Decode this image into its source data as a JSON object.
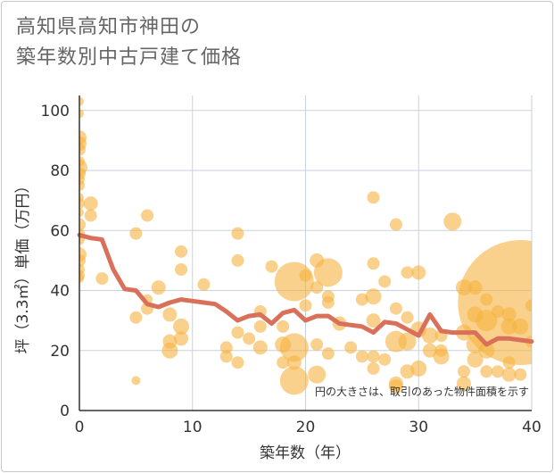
{
  "chart_data": {
    "type": "scatter",
    "title_lines": [
      "高知県高知市神田の",
      "築年数別中古戸建て価格"
    ],
    "xlabel": "築年数（年）",
    "ylabel": "坪（3.3㎡）単価（万円）",
    "xlim": [
      0,
      40
    ],
    "ylim": [
      0,
      105
    ],
    "x_ticks": [
      0,
      10,
      20,
      30,
      40
    ],
    "y_ticks": [
      0,
      20,
      40,
      60,
      80,
      100
    ],
    "grid": true,
    "note": "円の大きさは、取引のあった物件面積を示す",
    "colors": {
      "bubble": "#f5b340",
      "line": "#d9705a",
      "grid": "#c8d2dc",
      "axis": "#333333"
    },
    "series": [
      {
        "name": "平均坪単価",
        "type": "line",
        "x": [
          0,
          1,
          2,
          3,
          4,
          5,
          6,
          7,
          8,
          9,
          10,
          11,
          12,
          13,
          14,
          15,
          16,
          17,
          18,
          19,
          20,
          21,
          22,
          23,
          24,
          25,
          26,
          27,
          28,
          29,
          30,
          31,
          32,
          33,
          34,
          35,
          36,
          37,
          38,
          39,
          40
        ],
        "y": [
          58.5,
          57.5,
          57,
          47,
          40.5,
          40,
          35.5,
          34.5,
          36,
          37,
          36.5,
          36,
          35.5,
          33,
          30,
          31.5,
          32,
          29,
          32.5,
          33.5,
          30,
          31.5,
          31.5,
          29,
          28.5,
          28,
          26,
          29.5,
          29,
          27,
          25,
          32,
          26.5,
          26,
          26,
          26,
          22,
          24,
          24,
          23.5,
          23
        ]
      },
      {
        "name": "取引",
        "type": "bubble",
        "x": [
          0,
          0,
          0,
          0,
          0,
          0,
          0,
          0,
          0,
          0,
          0,
          0,
          0,
          0,
          0,
          0,
          0,
          0,
          0,
          0,
          0,
          1,
          1,
          2,
          5,
          5,
          5,
          6,
          6,
          6,
          7,
          8,
          8,
          8,
          9,
          9,
          9,
          9,
          11,
          13,
          13,
          14,
          14,
          14,
          14,
          15,
          16,
          16,
          16,
          17,
          18,
          18,
          18,
          19,
          19,
          19,
          19,
          20,
          20,
          21,
          21,
          21,
          21,
          22,
          22,
          22,
          22,
          23,
          24,
          25,
          25,
          26,
          26,
          26,
          26,
          26,
          26,
          27,
          27,
          28,
          28,
          28,
          28,
          28,
          29,
          29,
          29,
          29,
          30,
          30,
          30,
          31,
          31,
          32,
          32,
          32,
          33,
          34,
          34,
          34,
          34,
          35,
          35,
          35,
          35,
          36,
          36,
          36,
          36,
          37,
          37,
          38,
          38,
          38,
          38,
          39,
          39,
          39,
          40,
          40
        ],
        "y": [
          103,
          99,
          91,
          89,
          87,
          83,
          81,
          79,
          77,
          75,
          71,
          69,
          66,
          62,
          59,
          57,
          52,
          50,
          47,
          45,
          44,
          69,
          65,
          44,
          59,
          31,
          10,
          65,
          37,
          34,
          41,
          32,
          23,
          20,
          53,
          47,
          28,
          24,
          42,
          21,
          18,
          59,
          50,
          26,
          16,
          24,
          33,
          28,
          21,
          48,
          28,
          22,
          16,
          43,
          21,
          16,
          10,
          45,
          35,
          50,
          41,
          22,
          12,
          46,
          38,
          36,
          19,
          29,
          21,
          37,
          18,
          71,
          49,
          38,
          30,
          18,
          14,
          43,
          17,
          62,
          34,
          23,
          9,
          8,
          46,
          31,
          23,
          13,
          46,
          27,
          14,
          25,
          20,
          25,
          20,
          18,
          63,
          41,
          26,
          13,
          9,
          41,
          32,
          22,
          17,
          37,
          30,
          20,
          13,
          33,
          13,
          32,
          28,
          16,
          12,
          36,
          28,
          12,
          35,
          23
        ],
        "r": [
          5,
          5,
          8,
          8,
          7,
          6,
          9,
          7,
          6,
          6,
          5,
          6,
          5,
          7,
          6,
          6,
          8,
          7,
          6,
          6,
          5,
          8,
          7,
          7,
          7,
          7,
          5,
          7,
          6,
          7,
          8,
          8,
          8,
          9,
          7,
          7,
          9,
          8,
          7,
          7,
          7,
          7,
          7,
          7,
          7,
          7,
          7,
          7,
          8,
          7,
          7,
          9,
          7,
          22,
          16,
          8,
          16,
          7,
          7,
          8,
          7,
          7,
          10,
          16,
          7,
          7,
          7,
          8,
          7,
          7,
          7,
          7,
          7,
          9,
          8,
          7,
          7,
          7,
          7,
          7,
          7,
          12,
          8,
          8,
          7,
          7,
          10,
          8,
          8,
          9,
          9,
          9,
          8,
          7,
          7,
          9,
          10,
          9,
          9,
          7,
          8,
          8,
          9,
          10,
          9,
          7,
          12,
          9,
          7,
          7,
          7,
          8,
          9,
          7,
          8,
          70,
          9,
          7,
          7,
          7
        ]
      }
    ]
  }
}
